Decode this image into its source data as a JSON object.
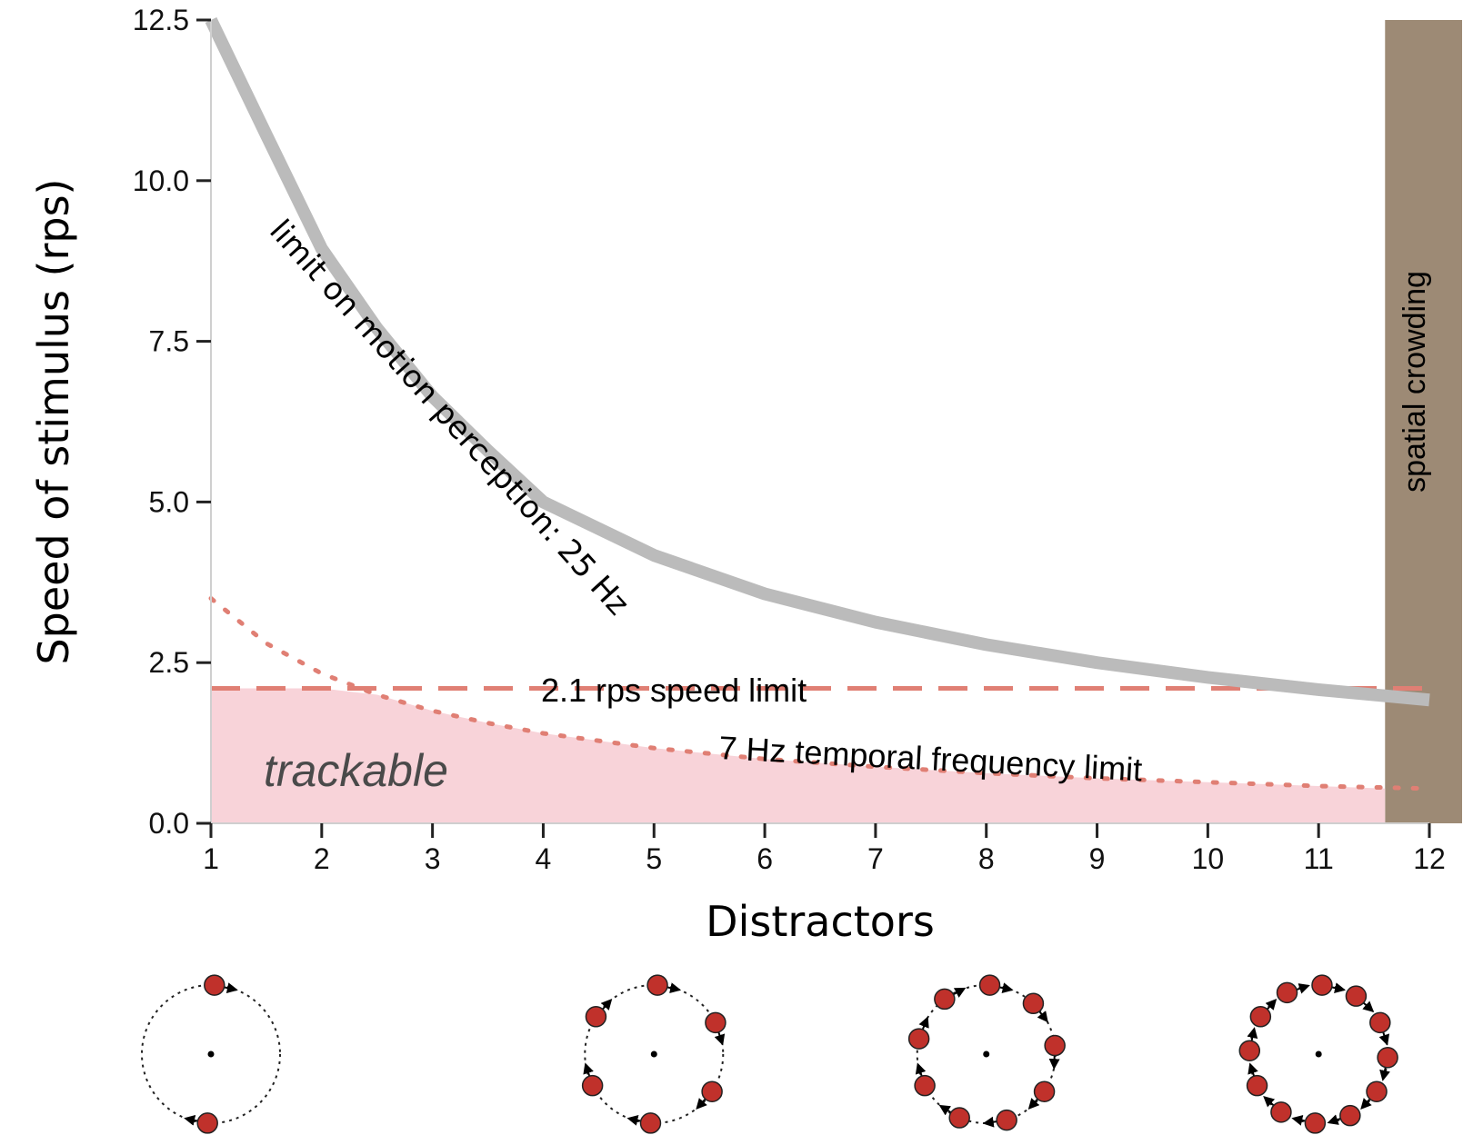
{
  "chart_data": {
    "type": "line",
    "xlabel": "Distractors",
    "ylabel": "Speed of stimulus (rps)",
    "xlim": [
      1,
      12
    ],
    "ylim": [
      0,
      12.5
    ],
    "xticks": [
      1,
      2,
      3,
      4,
      5,
      6,
      7,
      8,
      9,
      10,
      11,
      12
    ],
    "yticks": [
      "0.0",
      "2.5",
      "5.0",
      "7.5",
      "10.0",
      "12.5"
    ],
    "x": [
      1,
      1.5,
      2,
      2.5,
      3,
      3.5,
      4,
      5,
      6,
      7,
      8,
      9,
      10,
      11,
      12
    ],
    "series": [
      {
        "name": "limit on motion perception: 25 Hz",
        "values": [
          12.5,
          10.71,
          8.94,
          7.7,
          6.64,
          5.8,
          5.0,
          4.17,
          3.57,
          3.13,
          2.78,
          2.5,
          2.27,
          2.08,
          1.92
        ]
      },
      {
        "name": "2.1 rps speed limit",
        "values": [
          2.1,
          2.1,
          2.1,
          2.1,
          2.1,
          2.1,
          2.1,
          2.1,
          2.1,
          2.1,
          2.1,
          2.1,
          2.1,
          2.1,
          2.1
        ]
      },
      {
        "name": "7 Hz temporal frequency limit",
        "values": [
          3.5,
          2.8,
          2.33,
          2.0,
          1.75,
          1.56,
          1.4,
          1.17,
          1.0,
          0.88,
          0.78,
          0.7,
          0.64,
          0.58,
          0.54
        ]
      }
    ],
    "regions": {
      "trackable": "trackable",
      "crowding": "spatial crowding",
      "crowding_xmin": 11.6
    },
    "colors": {
      "motion_limit": "#bbbbbb",
      "speed_limit": "#e07f74",
      "tf_limit": "#e07f74",
      "trackable_fill": "#f8d3d9",
      "crowding_fill": "#9d8a75",
      "circle_dot": "#c0312b"
    },
    "stimulus_examples": [
      {
        "distractors": 1,
        "x": 1
      },
      {
        "distractors": 5,
        "x": 5
      },
      {
        "distractors": 8,
        "x": 8
      },
      {
        "distractors": 11,
        "x": 11
      }
    ]
  }
}
